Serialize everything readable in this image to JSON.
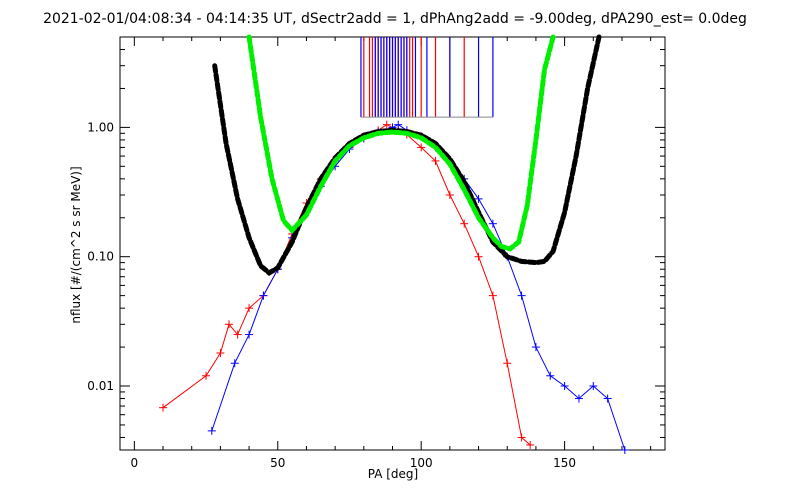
{
  "chart_data": {
    "type": "scatter",
    "title": "2021-02-01/04:08:34 - 04:14:35 UT, dSectr2add = 1, dPhAng2add = -9.00deg, dPA290_est=   0.0deg",
    "xlabel": "PA [deg]",
    "ylabel": "nflux [#/(cm^2 s sr MeV)]",
    "xlim": [
      -5,
      185
    ],
    "ylim": [
      0.0032,
      5.0
    ],
    "y_scale": "log",
    "grid": false,
    "x_ticks": [
      0,
      50,
      100,
      150
    ],
    "x_tick_labels": [
      "0",
      "50",
      "100",
      "150"
    ],
    "y_ticks": [
      0.01,
      0.1,
      1.0
    ],
    "y_tick_labels": [
      "0.01",
      "0.10",
      "1.00"
    ],
    "colors": {
      "red": "#ff0000",
      "blue": "#0000ff",
      "green": "#00ee00",
      "black": "#000000"
    },
    "series": [
      {
        "color": "black",
        "style": "thick-dashed",
        "x": [
          28,
          32,
          36,
          40,
          44,
          47,
          50,
          55,
          60,
          65,
          70,
          75,
          80,
          85,
          90,
          95,
          100,
          105,
          110,
          115,
          120,
          125,
          130,
          135,
          140,
          143,
          146,
          150,
          154,
          158,
          162
        ],
        "y": [
          3.0,
          0.75,
          0.28,
          0.14,
          0.085,
          0.075,
          0.082,
          0.13,
          0.24,
          0.4,
          0.58,
          0.75,
          0.87,
          0.93,
          0.95,
          0.93,
          0.87,
          0.75,
          0.57,
          0.38,
          0.22,
          0.13,
          0.1,
          0.092,
          0.09,
          0.092,
          0.11,
          0.22,
          0.6,
          2.0,
          5.0
        ]
      },
      {
        "color": "green",
        "style": "thick-dashed",
        "x": [
          40,
          44,
          48,
          52,
          55,
          60,
          65,
          70,
          75,
          80,
          85,
          90,
          95,
          100,
          105,
          110,
          115,
          120,
          125,
          128,
          131,
          134,
          137,
          140,
          143,
          146
        ],
        "y": [
          5.0,
          1.2,
          0.4,
          0.19,
          0.16,
          0.21,
          0.35,
          0.55,
          0.72,
          0.83,
          0.9,
          0.92,
          0.9,
          0.83,
          0.7,
          0.52,
          0.33,
          0.2,
          0.14,
          0.12,
          0.115,
          0.13,
          0.25,
          0.8,
          2.8,
          5.0
        ]
      },
      {
        "color": "red",
        "style": "lines+markers",
        "name": "",
        "x": [
          10,
          25,
          30,
          33,
          36,
          40,
          45,
          50,
          55,
          60,
          65,
          70,
          75,
          80,
          85,
          88,
          92,
          95,
          100,
          105,
          110,
          115,
          120,
          125,
          130,
          135,
          138
        ],
        "y": [
          0.0068,
          0.012,
          0.018,
          0.03,
          0.025,
          0.04,
          0.05,
          0.08,
          0.15,
          0.26,
          0.4,
          0.55,
          0.7,
          0.85,
          0.95,
          1.05,
          0.95,
          0.88,
          0.7,
          0.55,
          0.3,
          0.18,
          0.1,
          0.05,
          0.015,
          0.004,
          0.0035
        ]
      },
      {
        "color": "blue",
        "style": "lines+markers",
        "name": "",
        "x": [
          27,
          35,
          40,
          45,
          50,
          55,
          60,
          65,
          70,
          75,
          80,
          85,
          90,
          92,
          95,
          100,
          105,
          110,
          115,
          120,
          125,
          130,
          135,
          140,
          145,
          150,
          155,
          160,
          165,
          171
        ],
        "y": [
          0.0045,
          0.015,
          0.025,
          0.05,
          0.08,
          0.14,
          0.22,
          0.35,
          0.5,
          0.68,
          0.82,
          0.92,
          1.0,
          1.05,
          0.95,
          0.85,
          0.7,
          0.55,
          0.4,
          0.28,
          0.18,
          0.1,
          0.05,
          0.02,
          0.012,
          0.01,
          0.008,
          0.01,
          0.008,
          0.0032
        ]
      }
    ],
    "vertical_lines": {
      "red_x": [
        80,
        82,
        83,
        84,
        85,
        86,
        87,
        88,
        89,
        90,
        91,
        92,
        93,
        94,
        95,
        96,
        97,
        100,
        105,
        110,
        115
      ],
      "blue_x": [
        79,
        84,
        85,
        86,
        87,
        88,
        89,
        90,
        91,
        92,
        93,
        94,
        95,
        98,
        102,
        110,
        120,
        125
      ]
    }
  }
}
